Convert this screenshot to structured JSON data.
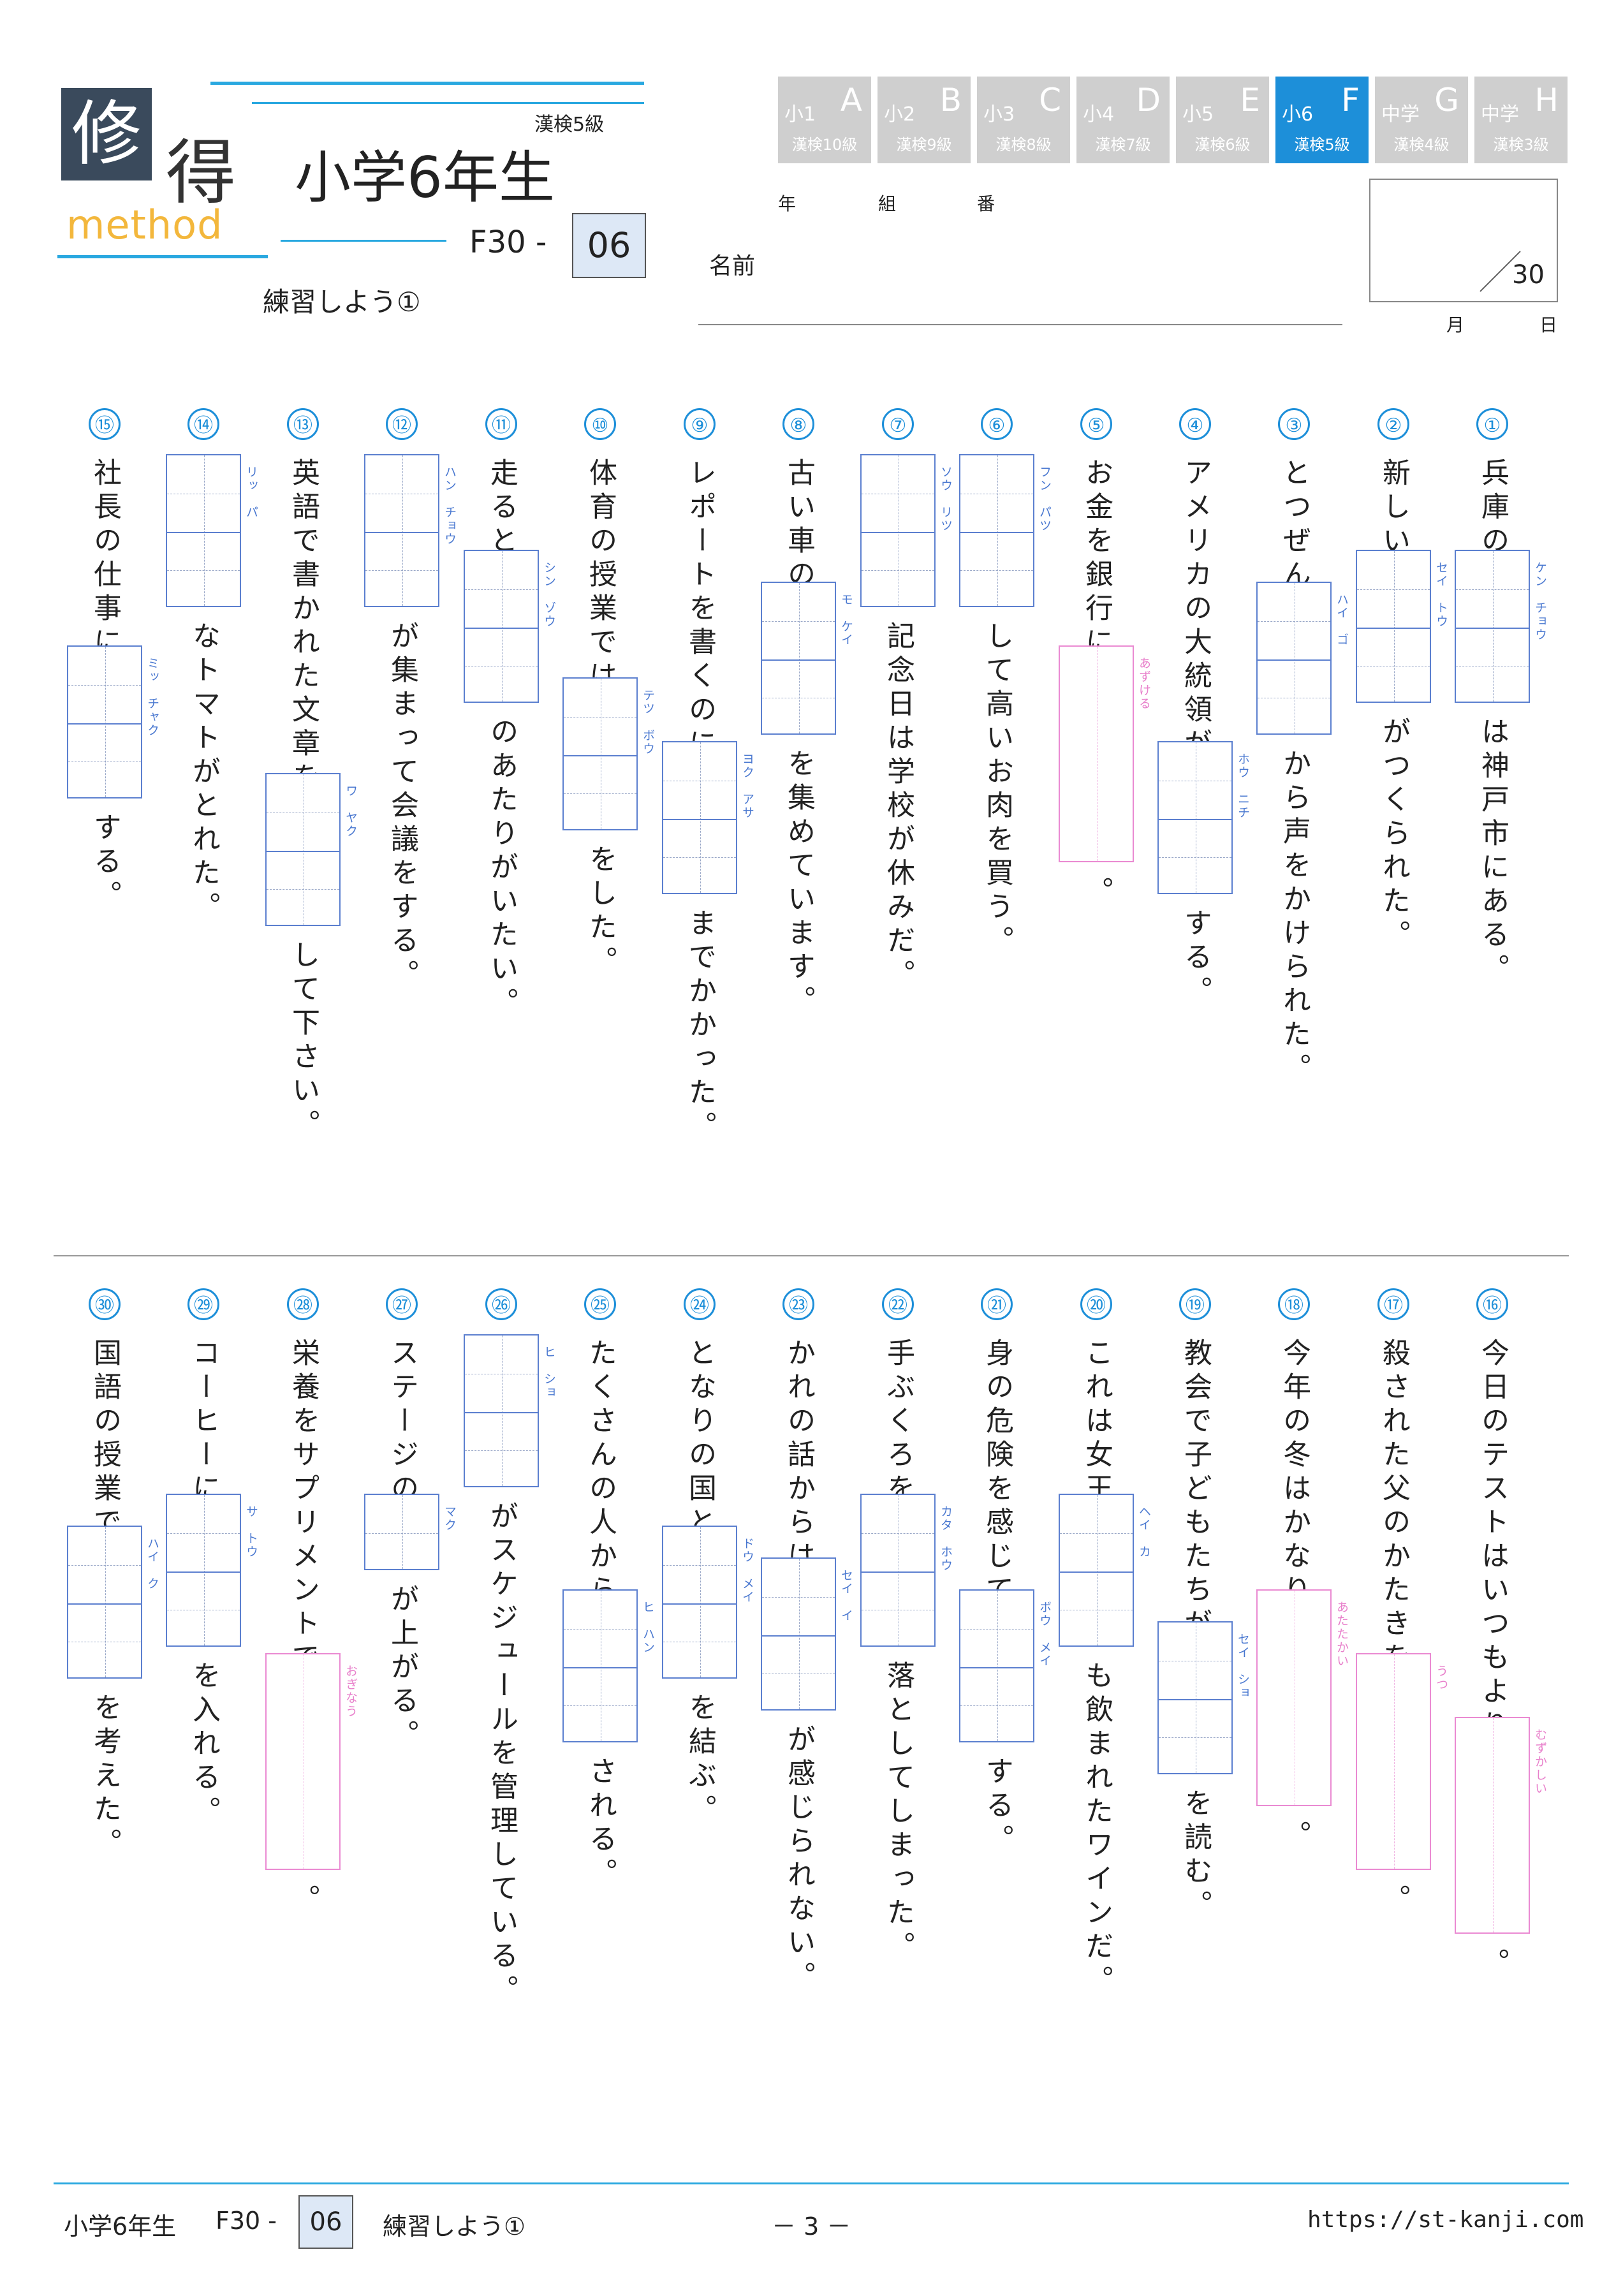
{
  "header": {
    "logo_char1": "修",
    "logo_char2": "得",
    "logo_method": "method",
    "kanken": "漢検5級",
    "grade": "小学6年生",
    "code_prefix": "F30 -",
    "code_number": "06",
    "subtitle": "練習しよう①",
    "name_label": "名前",
    "year_label": "年",
    "class_label": "組",
    "number_label": "番",
    "score": "30",
    "month_label": "月",
    "day_label": "日"
  },
  "levels": [
    {
      "grade": "小1",
      "letter": "A",
      "kanken": "漢検10級",
      "active": false
    },
    {
      "grade": "小2",
      "letter": "B",
      "kanken": "漢検9級",
      "active": false
    },
    {
      "grade": "小3",
      "letter": "C",
      "kanken": "漢検8級",
      "active": false
    },
    {
      "grade": "小4",
      "letter": "D",
      "kanken": "漢検7級",
      "active": false
    },
    {
      "grade": "小5",
      "letter": "E",
      "kanken": "漢検6級",
      "active": false
    },
    {
      "grade": "小6",
      "letter": "F",
      "kanken": "漢検5級",
      "active": true
    },
    {
      "grade": "中学",
      "letter": "G",
      "kanken": "漢検4級",
      "active": false
    },
    {
      "grade": "中学",
      "letter": "H",
      "kanken": "漢検3級",
      "active": false
    }
  ],
  "questions": [
    {
      "num": "①",
      "t1": "兵庫の",
      "f": "ケン　チョウ",
      "t2": "は神戸市にある。"
    },
    {
      "num": "②",
      "t1": "新しい",
      "f": "セイ　トウ",
      "t2": "がつくられた。"
    },
    {
      "num": "③",
      "t1": "とつぜん",
      "f": "ハイ　ゴ",
      "t2": "から声をかけられた。"
    },
    {
      "num": "④",
      "t1": "アメリカの大統領が",
      "f": "ホウ　ニチ",
      "t2": "する。"
    },
    {
      "num": "⑤",
      "t1": "お金を銀行に",
      "f": "あずける",
      "t2": "。"
    },
    {
      "num": "⑥",
      "t1": "",
      "f": "フン　パツ",
      "t2": "して高いお肉を買う。"
    },
    {
      "num": "⑦",
      "t1": "",
      "f": "ソウ　リツ",
      "t2": "記念日は学校が休みだ。"
    },
    {
      "num": "⑧",
      "t1": "古い車の",
      "f": "モ　ケイ",
      "t2": "を集めています。"
    },
    {
      "num": "⑨",
      "t1": "レポートを書くのに",
      "f": "ヨク　アサ",
      "t2": "までかかった。"
    },
    {
      "num": "⑩",
      "t1": "体育の授業では",
      "f": "テツ　ボウ",
      "t2": "をした。"
    },
    {
      "num": "⑪",
      "t1": "走ると",
      "f": "シン　ゾウ",
      "t2": "のあたりがいたい。"
    },
    {
      "num": "⑫",
      "t1": "",
      "f": "ハン　チョウ",
      "t2": "が集まって会議をする。"
    },
    {
      "num": "⑬",
      "t1": "英語で書かれた文章を",
      "f": "ワ　ヤク",
      "t2": "して下さい。"
    },
    {
      "num": "⑭",
      "t1": "",
      "f": "リッ　パ",
      "t2": "なトマトがとれた。"
    },
    {
      "num": "⑮",
      "t1": "社長の仕事に",
      "f": "ミッ　チャク",
      "t2": "する。"
    },
    {
      "num": "⑯",
      "t1": "今日のテストはいつもより",
      "f": "むずかしい",
      "t2": "。"
    },
    {
      "num": "⑰",
      "t1": "殺された父のかたきを",
      "f": "うつ",
      "t2": "。"
    },
    {
      "num": "⑱",
      "t1": "今年の冬はかなり",
      "f": "あたたかい",
      "t2": "。"
    },
    {
      "num": "⑲",
      "t1": "教会で子どもたちが",
      "f": "セイ　ショ",
      "t2": "を読む。"
    },
    {
      "num": "⑳",
      "t1": "これは女王",
      "f": "ヘイ　カ",
      "t2": "も飲まれたワインだ。"
    },
    {
      "num": "㉑",
      "t1": "身の危険を感じて",
      "f": "ボウ　メイ",
      "t2": "する。"
    },
    {
      "num": "㉒",
      "t1": "手ぶくろを",
      "f": "カタ　ホウ",
      "t2": "落としてしまった。"
    },
    {
      "num": "㉓",
      "t1": "かれの話からは",
      "f": "セイ　イ",
      "t2": "が感じられない。"
    },
    {
      "num": "㉔",
      "t1": "となりの国と",
      "f": "ドウ　メイ",
      "t2": "を結ぶ。"
    },
    {
      "num": "㉕",
      "t1": "たくさんの人から",
      "f": "ヒ　ハン",
      "t2": "される。"
    },
    {
      "num": "㉖",
      "t1": "",
      "f": "ヒ　ショ",
      "t2": "がスケジュールを管理している。"
    },
    {
      "num": "㉗",
      "t1": "ステージの",
      "f": "マク",
      "t2": "が上がる。"
    },
    {
      "num": "㉘",
      "t1": "栄養をサプリメントで",
      "f": "おぎなう",
      "t2": "。"
    },
    {
      "num": "㉙",
      "t1": "コーヒーに",
      "f": "サ　トウ",
      "t2": "を入れる。"
    },
    {
      "num": "㉚",
      "t1": "国語の授業で",
      "f": "ハイ　ク",
      "t2": "を考えた。"
    }
  ],
  "footer": {
    "grade": "小学6年生",
    "code_prefix": "F30 -",
    "code_number": "06",
    "subtitle": "練習しよう①",
    "page": "－ 3 －",
    "url": "https://st-kanji.com"
  }
}
